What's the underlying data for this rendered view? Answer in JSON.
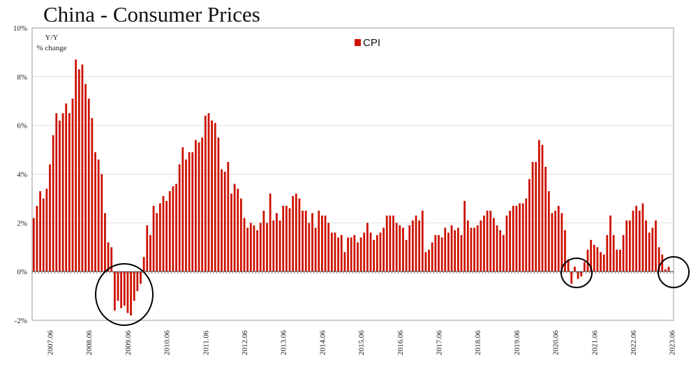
{
  "chart_data": {
    "type": "bar",
    "title": "China - Consumer Prices",
    "unit_label_line1": "Y/Y",
    "unit_label_line2": "% change",
    "legend": "CPI",
    "legend_position": "top-center",
    "series_color": "#cc1100",
    "ylim": [
      -2,
      10
    ],
    "y_ticks": [
      "-2%",
      "0%",
      "2%",
      "4%",
      "6%",
      "8%",
      "10%"
    ],
    "x_ticks": [
      "2007.06",
      "2008.06",
      "2009.06",
      "2010.06",
      "2011.06",
      "2012.06",
      "2013.06",
      "2014.06",
      "2015.06",
      "2016.06",
      "2017.06",
      "2018.06",
      "2019.06",
      "2020.06",
      "2021.06",
      "2022.06",
      "2023.06"
    ],
    "grid": true,
    "start": "2007.01",
    "values": [
      2.2,
      2.7,
      3.3,
      3.0,
      3.4,
      4.4,
      5.6,
      6.5,
      6.2,
      6.5,
      6.9,
      6.5,
      7.1,
      8.7,
      8.3,
      8.5,
      7.7,
      7.1,
      6.3,
      4.9,
      4.6,
      4.0,
      2.4,
      1.2,
      1.0,
      -1.6,
      -1.2,
      -1.5,
      -1.4,
      -1.7,
      -1.8,
      -1.2,
      -0.8,
      -0.5,
      0.6,
      1.9,
      1.5,
      2.7,
      2.4,
      2.8,
      3.1,
      2.9,
      3.3,
      3.5,
      3.6,
      4.4,
      5.1,
      4.6,
      4.9,
      4.9,
      5.4,
      5.3,
      5.5,
      6.4,
      6.5,
      6.2,
      6.1,
      5.5,
      4.2,
      4.1,
      4.5,
      3.2,
      3.6,
      3.4,
      3.0,
      2.2,
      1.8,
      2.0,
      1.9,
      1.7,
      2.0,
      2.5,
      2.0,
      3.2,
      2.1,
      2.4,
      2.1,
      2.7,
      2.7,
      2.6,
      3.1,
      3.2,
      3.0,
      2.5,
      2.5,
      2.0,
      2.4,
      1.8,
      2.5,
      2.3,
      2.3,
      2.0,
      1.6,
      1.6,
      1.4,
      1.5,
      0.8,
      1.4,
      1.4,
      1.5,
      1.2,
      1.4,
      1.6,
      2.0,
      1.6,
      1.3,
      1.5,
      1.6,
      1.8,
      2.3,
      2.3,
      2.3,
      2.0,
      1.9,
      1.8,
      1.3,
      1.9,
      2.1,
      2.3,
      2.1,
      2.5,
      0.8,
      0.9,
      1.2,
      1.5,
      1.5,
      1.4,
      1.8,
      1.6,
      1.9,
      1.7,
      1.8,
      1.5,
      2.9,
      2.1,
      1.8,
      1.8,
      1.9,
      2.1,
      2.3,
      2.5,
      2.5,
      2.2,
      1.9,
      1.7,
      1.5,
      2.3,
      2.5,
      2.7,
      2.7,
      2.8,
      2.8,
      3.0,
      3.8,
      4.5,
      4.5,
      5.4,
      5.2,
      4.3,
      3.3,
      2.4,
      2.5,
      2.7,
      2.4,
      1.7,
      0.5,
      -0.5,
      0.2,
      -0.3,
      -0.2,
      0.4,
      0.9,
      1.3,
      1.1,
      1.0,
      0.8,
      0.7,
      1.5,
      2.3,
      1.5,
      0.9,
      0.9,
      1.5,
      2.1,
      2.1,
      2.5,
      2.7,
      2.5,
      2.8,
      2.1,
      1.6,
      1.8,
      2.1,
      1.0,
      0.7,
      0.1,
      0.2,
      0.0
    ]
  }
}
